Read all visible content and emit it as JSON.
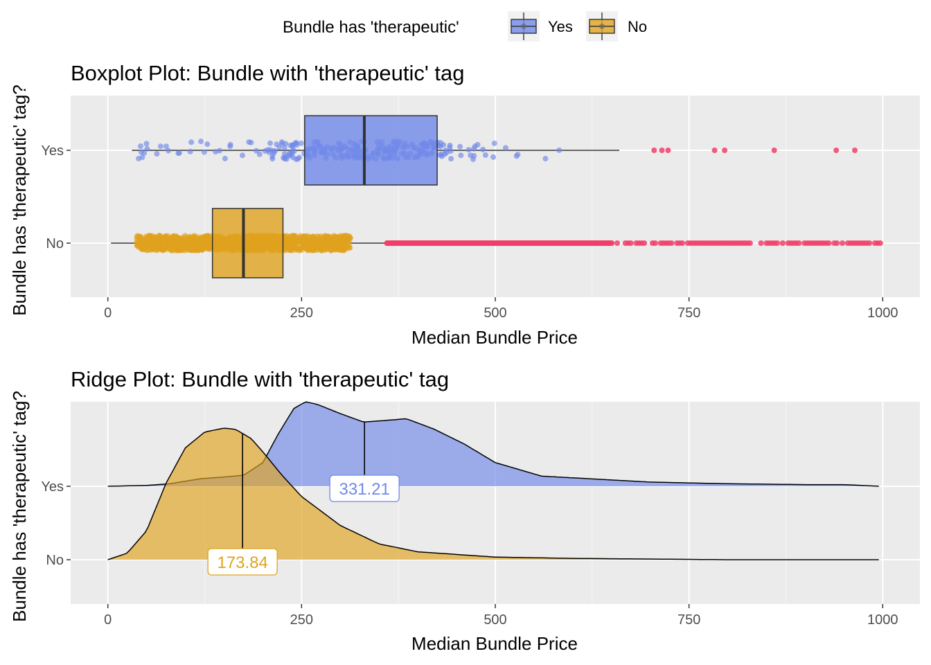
{
  "legend": {
    "title": "Bundle has 'therapeutic'",
    "items": [
      {
        "label": "Yes",
        "color": "#7088E8"
      },
      {
        "label": "No",
        "color": "#E0A31E"
      }
    ]
  },
  "colors": {
    "panel_bg": "#EBEBEB",
    "grid_major": "#FFFFFF",
    "grid_minor": "#F5F5F5",
    "yes_fill": "#7088E8",
    "no_fill": "#E0A31E",
    "outlier": "#F0406A",
    "line": "#333333"
  },
  "chart_data": [
    {
      "type": "boxplot",
      "title": "Boxplot Plot: Bundle with 'therapeutic' tag",
      "xlabel": "Median Bundle Price",
      "ylabel": "Bundle has 'therapeutic' tag?",
      "xlim": [
        -48,
        1048
      ],
      "xticks": [
        0,
        250,
        500,
        750,
        1000
      ],
      "xtick_labels": [
        "0",
        "250",
        "500",
        "750",
        "1000"
      ],
      "categories": [
        "Yes",
        "No"
      ],
      "grid": true,
      "series": [
        {
          "name": "Yes",
          "whisker_low": 31,
          "q1": 254,
          "median": 331,
          "q3": 425,
          "whisker_high": 660,
          "jitter_range": [
            33,
            585
          ],
          "outliers": [
            705,
            715,
            723,
            783,
            796,
            860,
            940,
            964
          ]
        },
        {
          "name": "No",
          "whisker_low": 4,
          "q1": 135,
          "median": 175,
          "q3": 226,
          "whisker_high": 358,
          "jitter_range": [
            37,
            313
          ],
          "outlier_range": [
            360,
            998
          ]
        }
      ]
    },
    {
      "type": "ridge",
      "title": "Ridge Plot: Bundle with 'therapeutic' tag",
      "xlabel": "Median Bundle Price",
      "ylabel": "Bundle has 'therapeutic' tag?",
      "xlim": [
        -48,
        1048
      ],
      "xticks": [
        0,
        250,
        500,
        750,
        1000
      ],
      "xtick_labels": [
        "0",
        "250",
        "500",
        "750",
        "1000"
      ],
      "categories": [
        "Yes",
        "No"
      ],
      "grid": true,
      "series": [
        {
          "name": "Yes",
          "median": 331.21,
          "median_label": "331.21",
          "x": [
            0,
            50,
            80,
            100,
            120,
            150,
            175,
            200,
            220,
            240,
            255,
            270,
            300,
            330,
            360,
            385,
            420,
            460,
            500,
            560,
            600,
            700,
            800,
            900,
            950,
            995
          ],
          "density": [
            0.0,
            0.01,
            0.03,
            0.06,
            0.09,
            0.11,
            0.13,
            0.28,
            0.62,
            0.92,
            1.0,
            0.97,
            0.86,
            0.76,
            0.78,
            0.8,
            0.68,
            0.5,
            0.28,
            0.12,
            0.1,
            0.05,
            0.03,
            0.02,
            0.02,
            0.0
          ]
        },
        {
          "name": "No",
          "median": 173.84,
          "median_label": "173.84",
          "x": [
            0,
            25,
            50,
            75,
            100,
            125,
            150,
            165,
            185,
            200,
            225,
            250,
            300,
            350,
            400,
            500,
            600,
            700,
            800,
            995
          ],
          "density": [
            0.0,
            0.05,
            0.22,
            0.58,
            0.85,
            0.97,
            1.0,
            0.99,
            0.92,
            0.82,
            0.64,
            0.48,
            0.26,
            0.12,
            0.06,
            0.02,
            0.01,
            0.005,
            0.0,
            0.0
          ]
        }
      ]
    }
  ]
}
